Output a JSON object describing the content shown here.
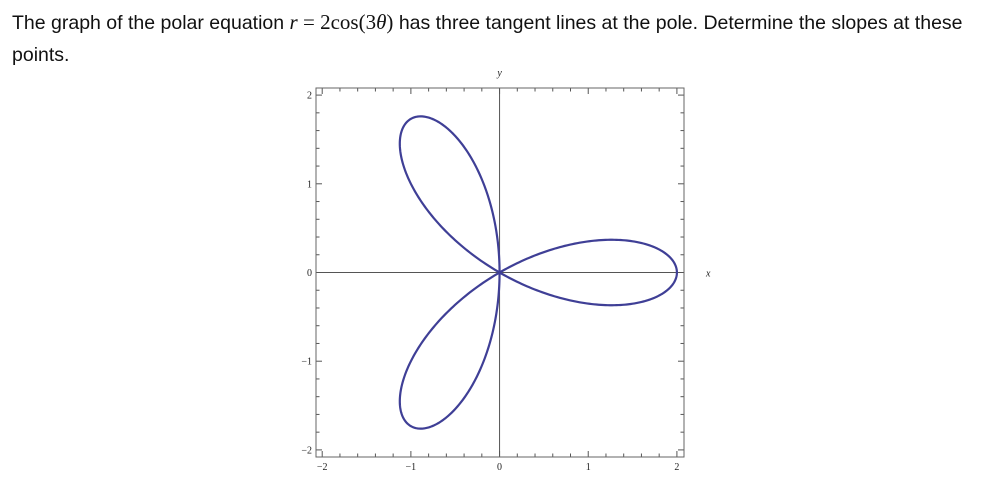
{
  "question": {
    "before": "The graph of the polar equation ",
    "equation_var": "r",
    "equation_rhs": " = 2cos(3",
    "equation_theta": "θ",
    "equation_close": ")",
    "after": " has three tangent lines at the pole.  Determine the slopes at these points."
  },
  "chart_data": {
    "type": "line",
    "title": "",
    "curve": "polar",
    "equation": "r = 2cos(3θ)",
    "amplitude": 2,
    "frequency": 3,
    "theta_range": [
      0,
      3.14159
    ],
    "xlabel": "x",
    "ylabel": "y",
    "xlim": [
      -2.07,
      2.08
    ],
    "ylim": [
      -2.08,
      2.08
    ],
    "x_ticks": [
      -2,
      -1,
      0,
      1,
      2
    ],
    "y_ticks": [
      -2,
      -1,
      0,
      1,
      2
    ],
    "x_tick_labels": [
      "−2",
      "−1",
      "0",
      "1",
      "2"
    ],
    "y_tick_labels": [
      "−2",
      "−1",
      "0",
      "1",
      "2"
    ],
    "minor_tick_step": 0.2,
    "grid": false,
    "line_color": "#3f3f96"
  }
}
